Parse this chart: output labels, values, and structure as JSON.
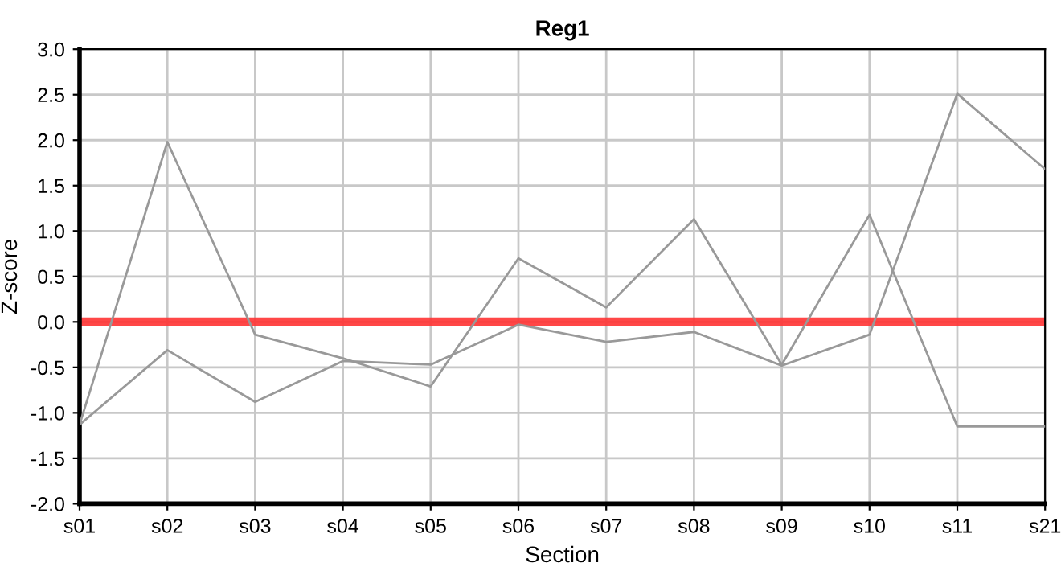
{
  "chart_data": {
    "type": "line",
    "title": "Reg1",
    "xlabel": "Section",
    "ylabel": "Z-score",
    "categories": [
      "s01",
      "s02",
      "s03",
      "s04",
      "s05",
      "s06",
      "s07",
      "s08",
      "s09",
      "s10",
      "s11",
      "s21"
    ],
    "series": [
      {
        "color": "#999999",
        "values": [
          -1.13,
          1.98,
          -0.14,
          -0.4,
          -0.71,
          0.7,
          0.16,
          1.13,
          -0.47,
          1.18,
          -1.15,
          -1.15
        ]
      },
      {
        "color": "#999999",
        "values": [
          -1.13,
          -0.31,
          -0.88,
          -0.43,
          -0.47,
          -0.03,
          -0.22,
          -0.11,
          -0.48,
          -0.14,
          2.51,
          1.68
        ]
      }
    ],
    "ylim": [
      -2.0,
      3.0
    ],
    "yticks": [
      {
        "value": -2,
        "label": "-2.0"
      },
      {
        "value": -1.5,
        "label": "-1.5"
      },
      {
        "value": -1,
        "label": "-1.0"
      },
      {
        "value": -0.5,
        "label": "-0.5"
      },
      {
        "value": 0,
        "label": "0.0"
      },
      {
        "value": 0.5,
        "label": "0.5"
      },
      {
        "value": 1,
        "label": "1.0"
      },
      {
        "value": 1.5,
        "label": "1.5"
      },
      {
        "value": 2,
        "label": "2.0"
      },
      {
        "value": 2.5,
        "label": "2.5"
      },
      {
        "value": 3,
        "label": "3.0"
      }
    ],
    "ref_lines": [
      {
        "axis": "y",
        "value": 0,
        "color": "#ff3333"
      }
    ],
    "grid": true,
    "marker": "none",
    "line_style": "solid"
  }
}
